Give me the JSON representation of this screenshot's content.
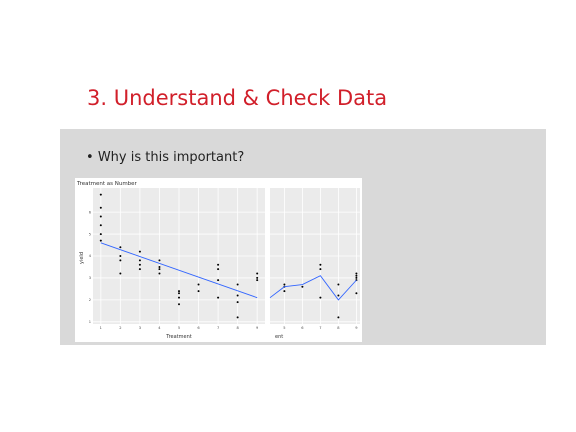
{
  "slide": {
    "title": "3. Understand & Check Data",
    "bullet": "Why is this important?"
  },
  "colors": {
    "title": "#d11f2a",
    "panel": "#d9d9d9",
    "line": "#3366ff"
  },
  "chart_data": [
    {
      "type": "scatter",
      "title": "Treatment as Number",
      "xlabel": "Treatment",
      "ylabel": "yield",
      "xlim": [
        0.6,
        9.4
      ],
      "ylim": [
        0.9,
        7.1
      ],
      "x_ticks": [
        1,
        2,
        3,
        4,
        5,
        6,
        7,
        8,
        9
      ],
      "y_ticks": [
        1,
        2,
        3,
        4,
        5,
        6
      ],
      "points": [
        [
          1,
          4.7
        ],
        [
          1,
          5.0
        ],
        [
          1,
          5.4
        ],
        [
          1,
          5.8
        ],
        [
          1,
          6.2
        ],
        [
          1,
          6.8
        ],
        [
          2,
          3.2
        ],
        [
          2,
          3.8
        ],
        [
          2,
          4.0
        ],
        [
          2,
          4.4
        ],
        [
          3,
          3.4
        ],
        [
          3,
          3.6
        ],
        [
          3,
          3.8
        ],
        [
          3,
          4.2
        ],
        [
          4,
          3.2
        ],
        [
          4,
          3.4
        ],
        [
          4,
          3.5
        ],
        [
          4,
          3.8
        ],
        [
          5,
          1.8
        ],
        [
          5,
          2.1
        ],
        [
          5,
          2.3
        ],
        [
          5,
          2.4
        ],
        [
          6,
          2.4
        ],
        [
          6,
          2.7
        ],
        [
          7,
          2.1
        ],
        [
          7,
          2.9
        ],
        [
          7,
          3.4
        ],
        [
          7,
          3.6
        ],
        [
          8,
          1.2
        ],
        [
          8,
          1.9
        ],
        [
          8,
          2.2
        ],
        [
          8,
          2.7
        ],
        [
          9,
          2.9
        ],
        [
          9,
          3.0
        ],
        [
          9,
          3.2
        ]
      ],
      "fit_line": [
        [
          1,
          4.6
        ],
        [
          9,
          2.1
        ]
      ],
      "grid": true
    },
    {
      "type": "scatter",
      "title": "",
      "xlabel": "ent",
      "x_ticks": [
        5,
        6,
        7,
        8,
        9
      ],
      "xlim": [
        4.2,
        9.2
      ],
      "ylim": [
        0.9,
        7.1
      ],
      "points": [
        [
          5,
          2.4
        ],
        [
          5,
          2.6
        ],
        [
          5,
          2.7
        ],
        [
          6,
          2.6
        ],
        [
          7,
          2.1
        ],
        [
          7,
          3.4
        ],
        [
          7,
          3.6
        ],
        [
          8,
          1.2
        ],
        [
          8,
          2.2
        ],
        [
          8,
          2.7
        ],
        [
          9,
          2.3
        ],
        [
          9,
          2.9
        ],
        [
          9,
          3.0
        ],
        [
          9,
          3.1
        ],
        [
          9,
          3.2
        ]
      ],
      "connected_line": [
        [
          4.2,
          2.1
        ],
        [
          5,
          2.6
        ],
        [
          6,
          2.7
        ],
        [
          7,
          3.1
        ],
        [
          8,
          2.0
        ],
        [
          9,
          2.9
        ]
      ],
      "grid": true
    }
  ]
}
